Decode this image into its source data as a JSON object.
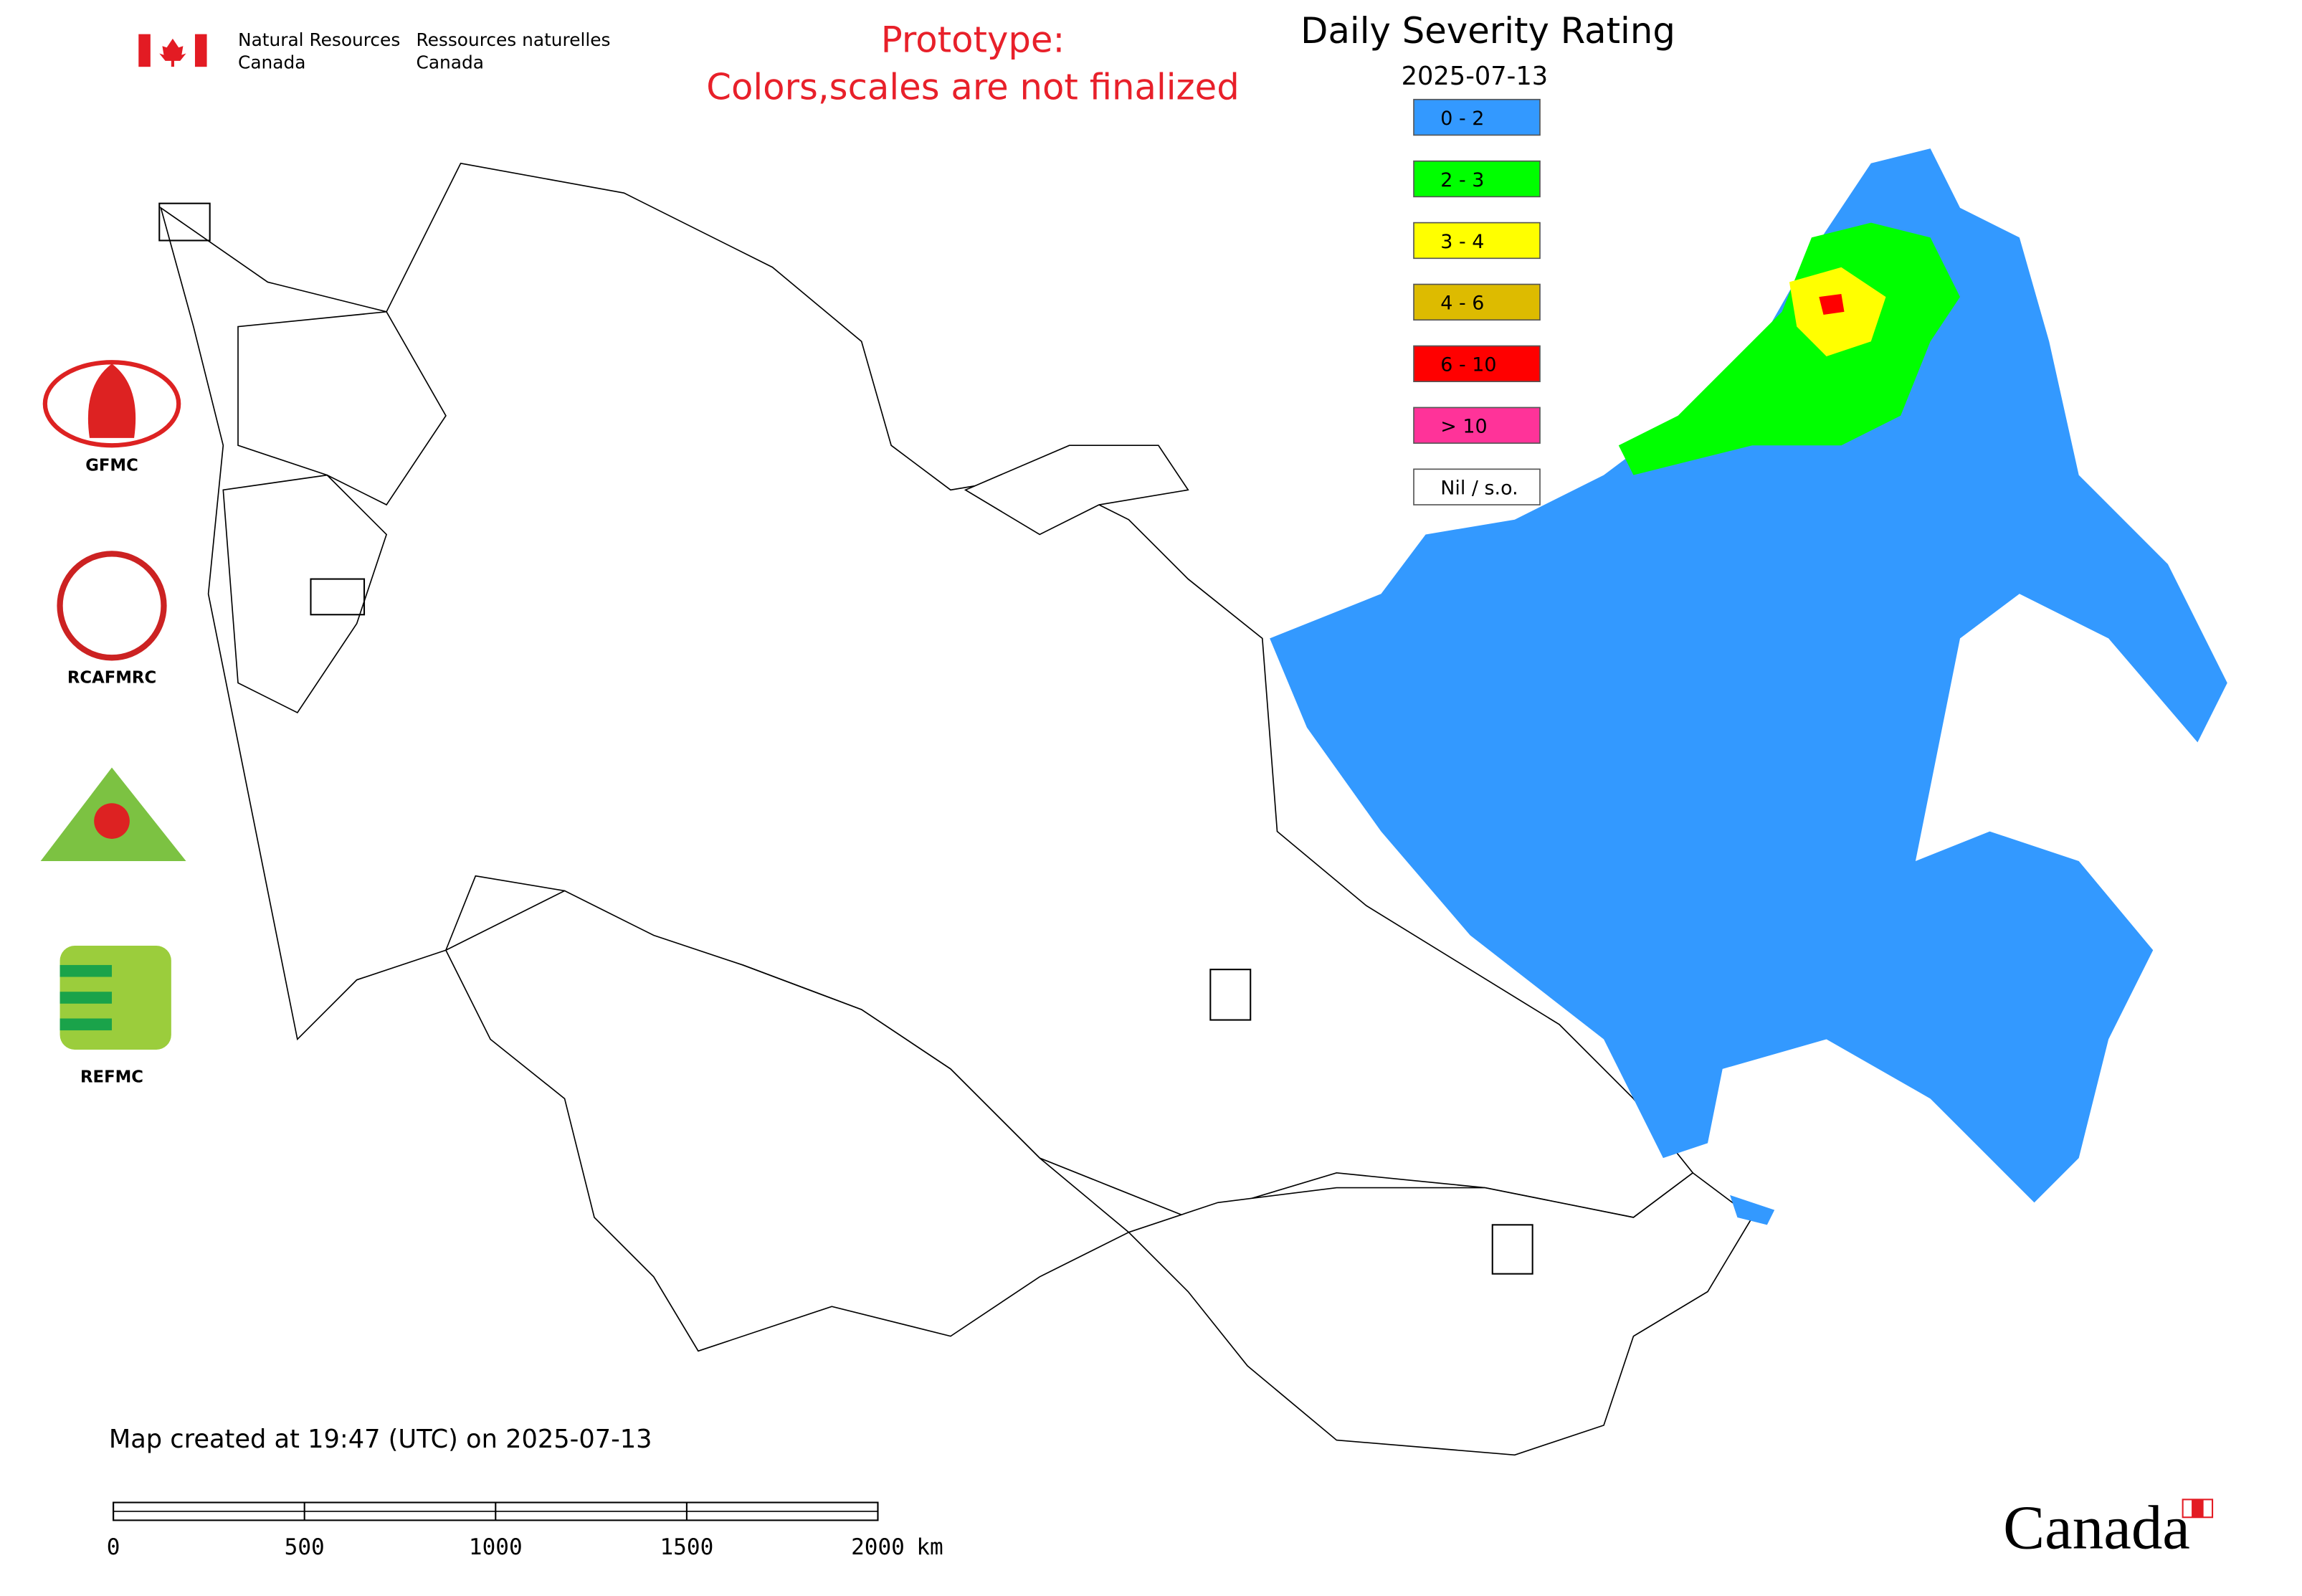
{
  "agency": {
    "en": [
      "Natural Resources",
      "Canada"
    ],
    "fr": [
      "Ressources naturelles",
      "Canada"
    ]
  },
  "notice": [
    "Prototype:",
    "Colors,scales are not finalized"
  ],
  "title": "Daily Severity Rating",
  "date": "2025-07-13",
  "legend": [
    {
      "label": "0 - 2",
      "color": "#3399ff"
    },
    {
      "label": "2 - 3",
      "color": "#00ff00"
    },
    {
      "label": "3 - 4",
      "color": "#ffff00"
    },
    {
      "label": "4 - 6",
      "color": "#ddbb00"
    },
    {
      "label": "6 - 10",
      "color": "#ff0000"
    },
    {
      "label": "> 10",
      "color": "#ff3399"
    },
    {
      "label": "Nil / s.o.",
      "color": "#ffffff"
    }
  ],
  "logos": [
    "GFMC",
    "RCAFMRC",
    "REFMC"
  ],
  "created": "Map created at 19:47 (UTC) on 2025-07-13",
  "scale": {
    "ticks": [
      0,
      500,
      1000,
      1500,
      2000
    ],
    "unit": "km"
  },
  "wordmark": "Canada"
}
